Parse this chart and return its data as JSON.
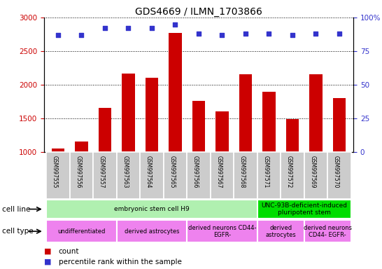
{
  "title": "GDS4669 / ILMN_1703866",
  "samples": [
    "GSM997555",
    "GSM997556",
    "GSM997557",
    "GSM997563",
    "GSM997564",
    "GSM997565",
    "GSM997566",
    "GSM997567",
    "GSM997568",
    "GSM997571",
    "GSM997572",
    "GSM997569",
    "GSM997570"
  ],
  "counts": [
    1050,
    1160,
    1660,
    2170,
    2100,
    2770,
    1760,
    1600,
    2160,
    1900,
    1490,
    2160,
    1800
  ],
  "percentiles": [
    87,
    87,
    92,
    92,
    92,
    95,
    88,
    87,
    88,
    88,
    87,
    88,
    88
  ],
  "bar_color": "#cc0000",
  "dot_color": "#3333cc",
  "ylim_left": [
    1000,
    3000
  ],
  "ylim_right": [
    0,
    100
  ],
  "yticks_left": [
    1000,
    1500,
    2000,
    2500,
    3000
  ],
  "yticks_right": [
    0,
    25,
    50,
    75,
    100
  ],
  "cell_line_groups": [
    {
      "label": "embryonic stem cell H9",
      "start": 0,
      "end": 9,
      "color": "#b0f0b0"
    },
    {
      "label": "UNC-93B-deficient-induced\npluripotent stem",
      "start": 9,
      "end": 13,
      "color": "#00dd00"
    }
  ],
  "cell_type_groups": [
    {
      "label": "undifferentiated",
      "start": 0,
      "end": 3,
      "color": "#ee82ee"
    },
    {
      "label": "derived astrocytes",
      "start": 3,
      "end": 6,
      "color": "#ee82ee"
    },
    {
      "label": "derived neurons CD44-\nEGFR-",
      "start": 6,
      "end": 9,
      "color": "#ee82ee"
    },
    {
      "label": "derived\nastrocytes",
      "start": 9,
      "end": 11,
      "color": "#ee82ee"
    },
    {
      "label": "derived neurons\nCD44- EGFR-",
      "start": 11,
      "end": 13,
      "color": "#ee82ee"
    }
  ],
  "legend_count_label": "count",
  "legend_pct_label": "percentile rank within the sample",
  "tick_bg_color": "#cccccc"
}
